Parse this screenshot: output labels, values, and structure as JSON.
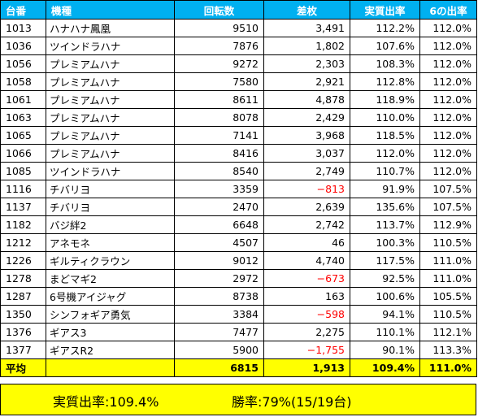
{
  "headers": [
    "台番",
    "機種",
    "回転数",
    "差枚",
    "実質出率",
    "6の出率"
  ],
  "rows": [
    [
      "1013",
      "ハナハナ鳳凰",
      "9510",
      "3,491",
      "112.2%",
      "112.0%"
    ],
    [
      "1036",
      "ツインドラハナ",
      "7876",
      "1,802",
      "107.6%",
      "112.0%"
    ],
    [
      "1056",
      "プレミアムハナ",
      "9272",
      "2,303",
      "108.3%",
      "112.0%"
    ],
    [
      "1058",
      "プレミアムハナ",
      "7580",
      "2,921",
      "112.8%",
      "112.0%"
    ],
    [
      "1061",
      "プレミアムハナ",
      "8611",
      "4,878",
      "118.9%",
      "112.0%"
    ],
    [
      "1063",
      "プレミアムハナ",
      "8078",
      "2,429",
      "110.0%",
      "112.0%"
    ],
    [
      "1065",
      "プレミアムハナ",
      "7141",
      "3,968",
      "118.5%",
      "112.0%"
    ],
    [
      "1066",
      "プレミアムハナ",
      "8416",
      "3,037",
      "112.0%",
      "112.0%"
    ],
    [
      "1085",
      "ツインドラハナ",
      "8540",
      "2,749",
      "110.7%",
      "112.0%"
    ],
    [
      "1116",
      "チバリヨ",
      "3359",
      "−813",
      "91.9%",
      "107.5%"
    ],
    [
      "1137",
      "チバリヨ",
      "2470",
      "2,639",
      "135.6%",
      "107.5%"
    ],
    [
      "1182",
      "バジ絆2",
      "6648",
      "2,742",
      "113.7%",
      "112.9%"
    ],
    [
      "1212",
      "アネモネ",
      "4507",
      "46",
      "100.3%",
      "110.5%"
    ],
    [
      "1226",
      "ギルティクラウン",
      "9012",
      "4,740",
      "117.5%",
      "111.0%"
    ],
    [
      "1278",
      "まどマギ2",
      "2972",
      "−673",
      "92.5%",
      "111.0%"
    ],
    [
      "1287",
      "6号機アイジャグ",
      "8738",
      "163",
      "100.6%",
      "105.5%"
    ],
    [
      "1350",
      "シンフォギア勇気",
      "3384",
      "−598",
      "94.1%",
      "110.5%"
    ],
    [
      "1376",
      "ギアス3",
      "7477",
      "2,275",
      "110.1%",
      "112.1%"
    ],
    [
      "1377",
      "ギアスR2",
      "5900",
      "−1,755",
      "90.1%",
      "113.3%"
    ]
  ],
  "average": [
    "平均",
    "",
    "6815",
    "1,913",
    "109.4%",
    "111.0%"
  ],
  "summary": {
    "rate_text": "実質出率:109.4%",
    "win_text": "勝率:79%(15/19台)"
  },
  "colors": {
    "header_bg": "#00b0f0",
    "header_text": "#ffffff",
    "highlight_bg": "#ffff00",
    "negative_text": "#ff0000"
  }
}
